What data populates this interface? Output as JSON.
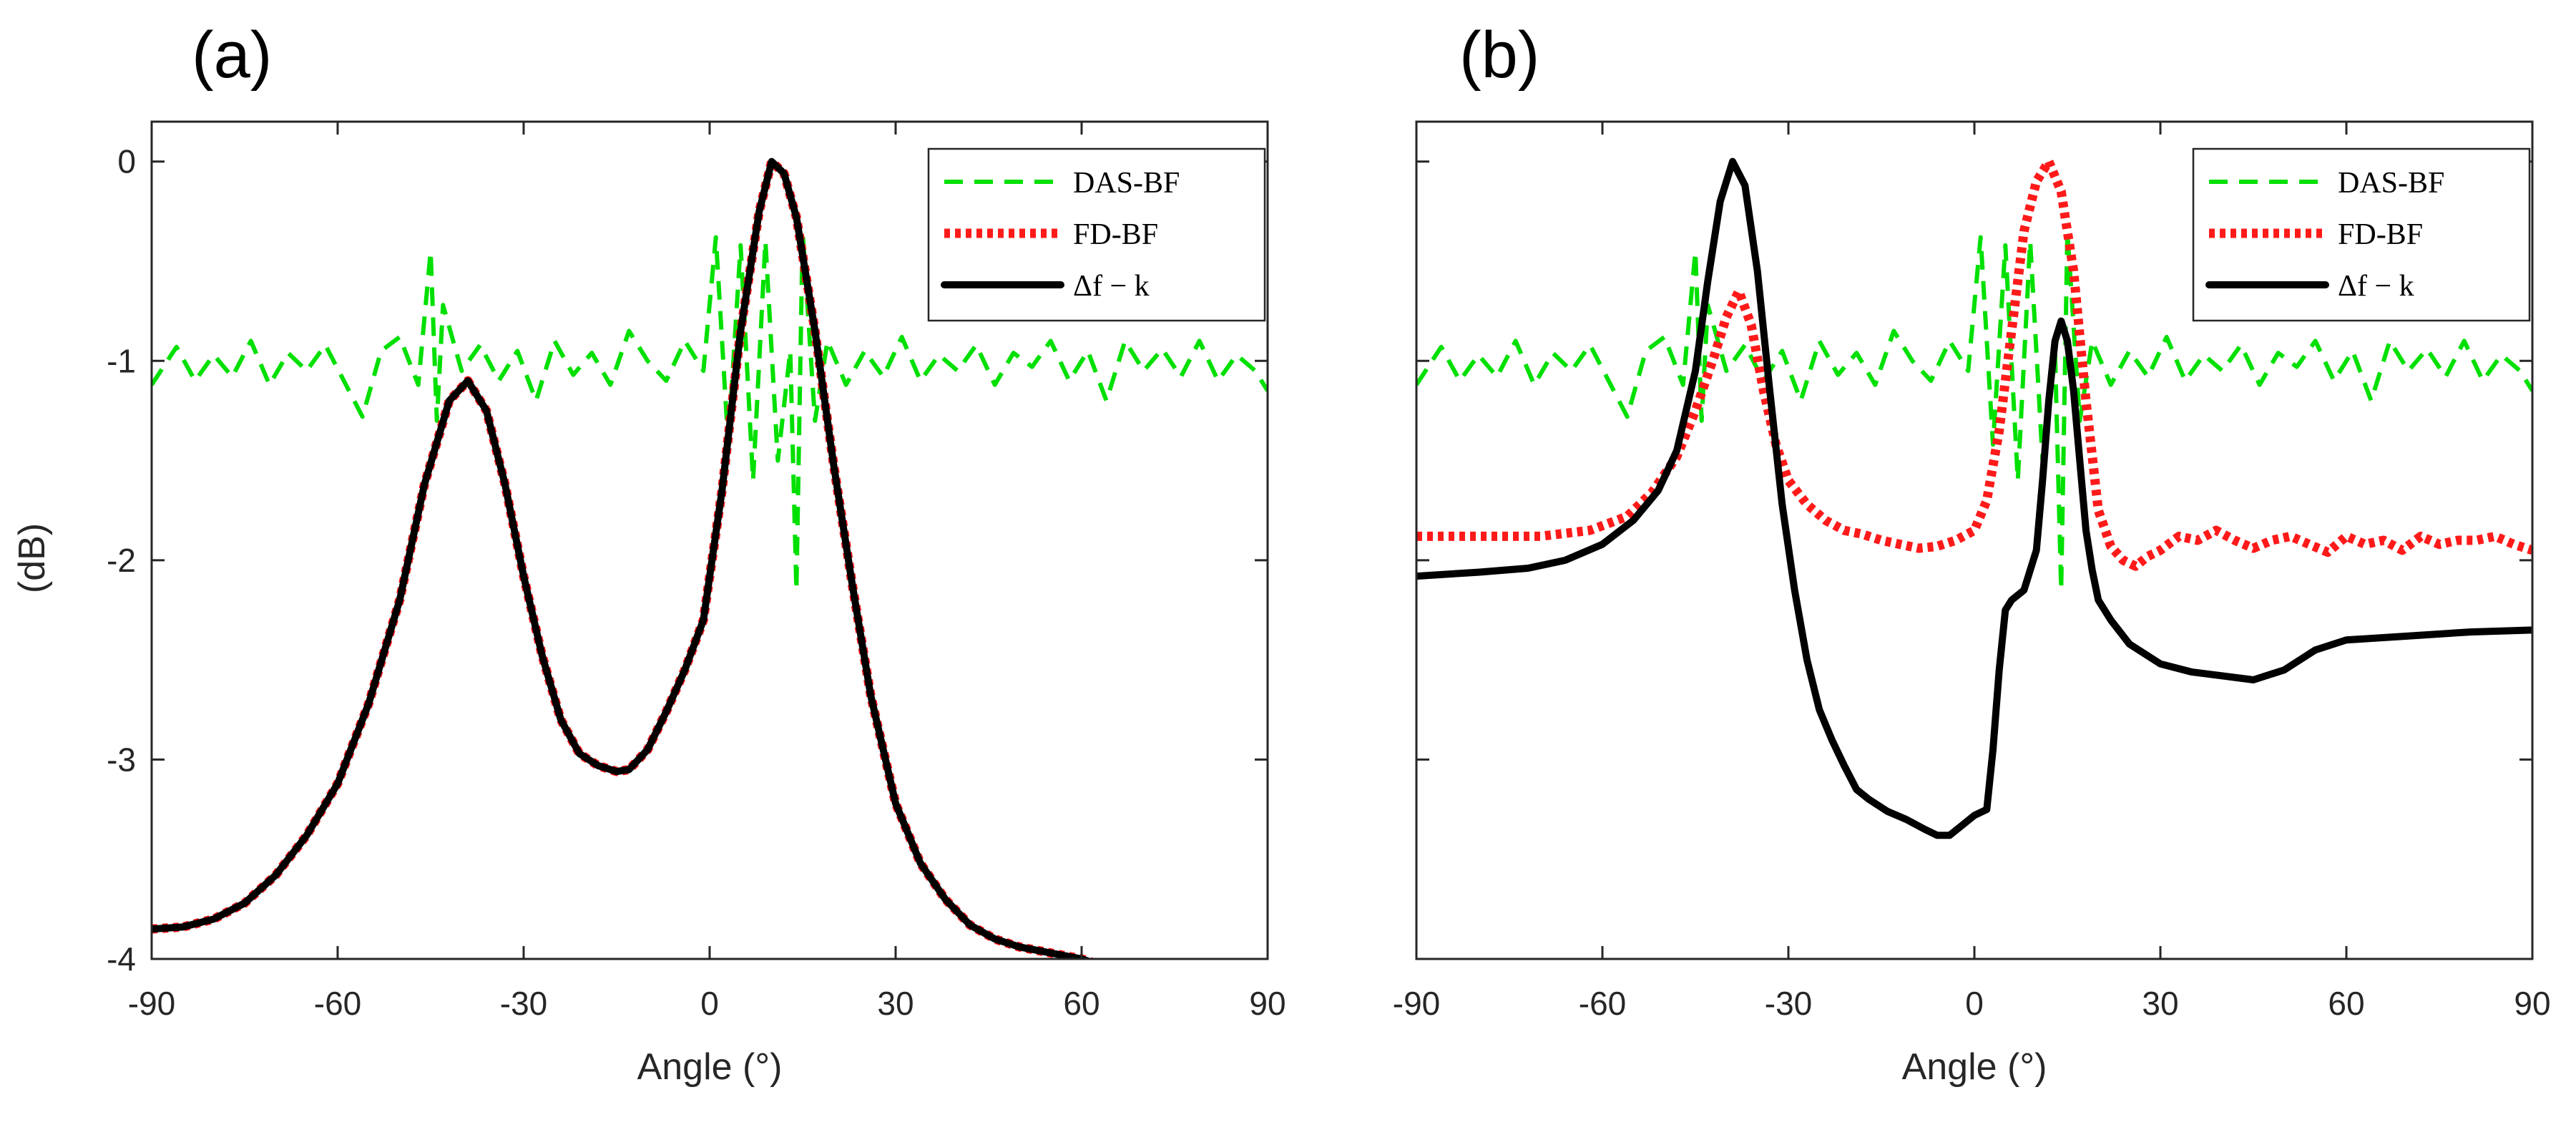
{
  "figure": {
    "ylabel": "(dB)"
  },
  "colors": {
    "das": "#00e000",
    "fd": "#ff1a1a",
    "df": "#000000"
  },
  "chart_data": [
    {
      "type": "line",
      "panel": "(a)",
      "xlabel": "Angle (°)",
      "ylabel": "(dB)",
      "xlim": [
        -90,
        90
      ],
      "ylim": [
        -4,
        0.2
      ],
      "xticks": [
        -90,
        -60,
        -30,
        0,
        30,
        60,
        90
      ],
      "xtick_labels": [
        "-90",
        "-60",
        "-30",
        "0",
        "30",
        "60",
        "90"
      ],
      "yticks": [
        -4,
        -3,
        -2,
        -1,
        0
      ],
      "ytick_labels": [
        "-4",
        "-3",
        "-2",
        "-1",
        "0"
      ],
      "legend": {
        "position": "top-right",
        "entries": [
          "DAS-BF",
          "FD-BF",
          "Δf − k"
        ]
      },
      "series": [
        {
          "name": "DAS-BF",
          "style": "dashed",
          "x": [
            -90,
            -86,
            -83,
            -80,
            -77,
            -74,
            -71,
            -68,
            -65,
            -62,
            -59,
            -56,
            -53,
            -50,
            -47,
            -45,
            -44,
            -43,
            -40,
            -37,
            -34,
            -31,
            -28,
            -25,
            -22,
            -19,
            -16,
            -13,
            -10,
            -7,
            -4,
            -1,
            1,
            3,
            5,
            7,
            9,
            11,
            13,
            14,
            15,
            17,
            19,
            22,
            25,
            28,
            31,
            34,
            37,
            40,
            43,
            46,
            49,
            52,
            55,
            58,
            61,
            64,
            67,
            70,
            73,
            76,
            79,
            82,
            85,
            88,
            90
          ],
          "y": [
            -1.12,
            -0.93,
            -1.1,
            -0.97,
            -1.08,
            -0.9,
            -1.12,
            -0.96,
            -1.05,
            -0.92,
            -1.1,
            -1.28,
            -0.95,
            -0.88,
            -1.12,
            -0.45,
            -1.3,
            -0.72,
            -1.05,
            -0.92,
            -1.1,
            -0.95,
            -1.2,
            -0.9,
            -1.07,
            -0.96,
            -1.12,
            -0.85,
            -1.0,
            -1.1,
            -0.9,
            -1.05,
            -0.38,
            -1.42,
            -0.42,
            -1.6,
            -0.4,
            -1.5,
            -0.95,
            -2.15,
            -0.35,
            -1.3,
            -0.9,
            -1.12,
            -0.95,
            -1.08,
            -0.88,
            -1.1,
            -0.97,
            -1.05,
            -0.92,
            -1.12,
            -0.96,
            -1.03,
            -0.9,
            -1.1,
            -0.95,
            -1.2,
            -0.9,
            -1.05,
            -0.94,
            -1.08,
            -0.9,
            -1.1,
            -0.97,
            -1.05,
            -1.15
          ]
        },
        {
          "name": "FD-BF",
          "style": "dotted",
          "x": [
            -90,
            -85,
            -80,
            -75,
            -70,
            -65,
            -60,
            -55,
            -50,
            -46,
            -42,
            -39,
            -36,
            -33,
            -30,
            -27,
            -24,
            -21,
            -18,
            -15,
            -13,
            -10,
            -7,
            -4,
            -1,
            2,
            5,
            8,
            10,
            12,
            14,
            17,
            20,
            23,
            26,
            30,
            34,
            38,
            42,
            46,
            50,
            55,
            60,
            62
          ],
          "y": [
            -3.85,
            -3.84,
            -3.8,
            -3.72,
            -3.58,
            -3.38,
            -3.12,
            -2.72,
            -2.2,
            -1.62,
            -1.2,
            -1.1,
            -1.25,
            -1.62,
            -2.08,
            -2.48,
            -2.8,
            -2.97,
            -3.03,
            -3.06,
            -3.05,
            -2.95,
            -2.76,
            -2.55,
            -2.3,
            -1.65,
            -0.85,
            -0.25,
            0.0,
            -0.06,
            -0.28,
            -0.85,
            -1.52,
            -2.12,
            -2.68,
            -3.22,
            -3.52,
            -3.7,
            -3.83,
            -3.9,
            -3.94,
            -3.97,
            -4.0,
            -4.02
          ]
        },
        {
          "name": "Δf − k",
          "style": "solid",
          "x": [
            -90,
            -85,
            -80,
            -75,
            -70,
            -65,
            -60,
            -55,
            -50,
            -46,
            -42,
            -39,
            -36,
            -33,
            -30,
            -27,
            -24,
            -21,
            -18,
            -15,
            -13,
            -10,
            -7,
            -4,
            -1,
            2,
            5,
            8,
            10,
            12,
            14,
            17,
            20,
            23,
            26,
            30,
            34,
            38,
            42,
            46,
            50,
            55,
            60,
            62
          ],
          "y": [
            -3.85,
            -3.84,
            -3.8,
            -3.72,
            -3.58,
            -3.38,
            -3.12,
            -2.72,
            -2.2,
            -1.62,
            -1.2,
            -1.1,
            -1.25,
            -1.62,
            -2.08,
            -2.48,
            -2.8,
            -2.97,
            -3.03,
            -3.06,
            -3.05,
            -2.95,
            -2.76,
            -2.55,
            -2.3,
            -1.65,
            -0.85,
            -0.25,
            0.0,
            -0.06,
            -0.28,
            -0.85,
            -1.52,
            -2.12,
            -2.68,
            -3.22,
            -3.52,
            -3.7,
            -3.83,
            -3.9,
            -3.94,
            -3.97,
            -4.0,
            -4.02
          ]
        }
      ]
    },
    {
      "type": "line",
      "panel": "(b)",
      "xlabel": "Angle (°)",
      "ylabel": "",
      "xlim": [
        -90,
        90
      ],
      "ylim": [
        -4,
        0.2
      ],
      "xticks": [
        -90,
        -60,
        -30,
        0,
        30,
        60,
        90
      ],
      "xtick_labels": [
        "-90",
        "-60",
        "-30",
        "0",
        "30",
        "60",
        "90"
      ],
      "yticks": [
        -4,
        -3,
        -2,
        -1,
        0
      ],
      "ytick_labels": [],
      "legend": {
        "position": "top-right",
        "entries": [
          "DAS-BF",
          "FD-BF",
          "Δf − k"
        ]
      },
      "series": [
        {
          "name": "DAS-BF",
          "style": "dashed",
          "x": [
            -90,
            -86,
            -83,
            -80,
            -77,
            -74,
            -71,
            -68,
            -65,
            -62,
            -59,
            -56,
            -53,
            -50,
            -47,
            -45,
            -44,
            -43,
            -40,
            -37,
            -34,
            -31,
            -28,
            -25,
            -22,
            -19,
            -16,
            -13,
            -10,
            -7,
            -4,
            -1,
            1,
            3,
            5,
            7,
            9,
            11,
            13,
            14,
            15,
            17,
            19,
            22,
            25,
            28,
            31,
            34,
            37,
            40,
            43,
            46,
            49,
            52,
            55,
            58,
            61,
            64,
            67,
            70,
            73,
            76,
            79,
            82,
            85,
            88,
            90
          ],
          "y": [
            -1.12,
            -0.93,
            -1.1,
            -0.97,
            -1.08,
            -0.9,
            -1.12,
            -0.96,
            -1.05,
            -0.92,
            -1.1,
            -1.28,
            -0.95,
            -0.88,
            -1.12,
            -0.45,
            -1.3,
            -0.72,
            -1.05,
            -0.92,
            -1.1,
            -0.95,
            -1.2,
            -0.9,
            -1.07,
            -0.96,
            -1.12,
            -0.85,
            -1.0,
            -1.1,
            -0.9,
            -1.05,
            -0.38,
            -1.42,
            -0.42,
            -1.6,
            -0.4,
            -1.5,
            -0.95,
            -2.15,
            -0.35,
            -1.3,
            -0.9,
            -1.12,
            -0.95,
            -1.08,
            -0.88,
            -1.1,
            -0.97,
            -1.05,
            -0.92,
            -1.12,
            -0.96,
            -1.03,
            -0.9,
            -1.1,
            -0.95,
            -1.2,
            -0.9,
            -1.05,
            -0.94,
            -1.08,
            -0.9,
            -1.1,
            -0.97,
            -1.05,
            -1.15
          ]
        },
        {
          "name": "FD-BF",
          "style": "dotted",
          "x": [
            -90,
            -80,
            -70,
            -62,
            -56,
            -52,
            -48,
            -45,
            -42,
            -40,
            -38,
            -36,
            -34,
            -32,
            -30,
            -27,
            -24,
            -21,
            -18,
            -15,
            -12,
            -9,
            -6,
            -3,
            0,
            2,
            4,
            6,
            8,
            10,
            12,
            14,
            16,
            18,
            20,
            22,
            24,
            26,
            28,
            30,
            33,
            36,
            39,
            42,
            45,
            48,
            51,
            54,
            57,
            60,
            63,
            66,
            69,
            72,
            75,
            78,
            81,
            84,
            87,
            90
          ],
          "y": [
            -1.88,
            -1.88,
            -1.88,
            -1.85,
            -1.78,
            -1.66,
            -1.48,
            -1.25,
            -0.98,
            -0.78,
            -0.65,
            -0.82,
            -1.15,
            -1.42,
            -1.6,
            -1.72,
            -1.8,
            -1.85,
            -1.87,
            -1.9,
            -1.92,
            -1.94,
            -1.93,
            -1.9,
            -1.85,
            -1.7,
            -1.35,
            -0.85,
            -0.35,
            -0.1,
            0.0,
            -0.15,
            -0.55,
            -1.2,
            -1.75,
            -1.93,
            -2.0,
            -2.03,
            -1.98,
            -1.95,
            -1.88,
            -1.9,
            -1.85,
            -1.9,
            -1.94,
            -1.9,
            -1.88,
            -1.92,
            -1.96,
            -1.88,
            -1.92,
            -1.9,
            -1.95,
            -1.88,
            -1.92,
            -1.9,
            -1.9,
            -1.88,
            -1.92,
            -1.95
          ]
        },
        {
          "name": "Δf − k",
          "style": "solid",
          "x": [
            -90,
            -80,
            -72,
            -66,
            -60,
            -55,
            -51,
            -48,
            -45,
            -43,
            -41,
            -39,
            -37,
            -35,
            -33,
            -31,
            -29,
            -27,
            -25,
            -23,
            -21,
            -19,
            -17,
            -14,
            -11,
            -8,
            -6,
            -4,
            -2,
            0,
            2,
            3,
            4,
            5,
            6,
            8,
            10,
            11,
            12,
            13,
            14,
            15,
            16,
            17,
            18,
            19,
            20,
            22,
            25,
            30,
            35,
            40,
            45,
            50,
            55,
            60,
            70,
            80,
            90
          ],
          "y": [
            -2.08,
            -2.06,
            -2.04,
            -2.0,
            -1.92,
            -1.8,
            -1.65,
            -1.45,
            -1.05,
            -0.6,
            -0.2,
            0.0,
            -0.12,
            -0.55,
            -1.15,
            -1.72,
            -2.15,
            -2.5,
            -2.75,
            -2.9,
            -3.03,
            -3.15,
            -3.2,
            -3.26,
            -3.3,
            -3.35,
            -3.38,
            -3.38,
            -3.33,
            -3.28,
            -3.25,
            -2.95,
            -2.55,
            -2.25,
            -2.2,
            -2.15,
            -1.95,
            -1.6,
            -1.2,
            -0.9,
            -0.8,
            -0.9,
            -1.15,
            -1.5,
            -1.85,
            -2.05,
            -2.2,
            -2.3,
            -2.42,
            -2.52,
            -2.56,
            -2.58,
            -2.6,
            -2.55,
            -2.45,
            -2.4,
            -2.38,
            -2.36,
            -2.35
          ]
        }
      ]
    }
  ]
}
